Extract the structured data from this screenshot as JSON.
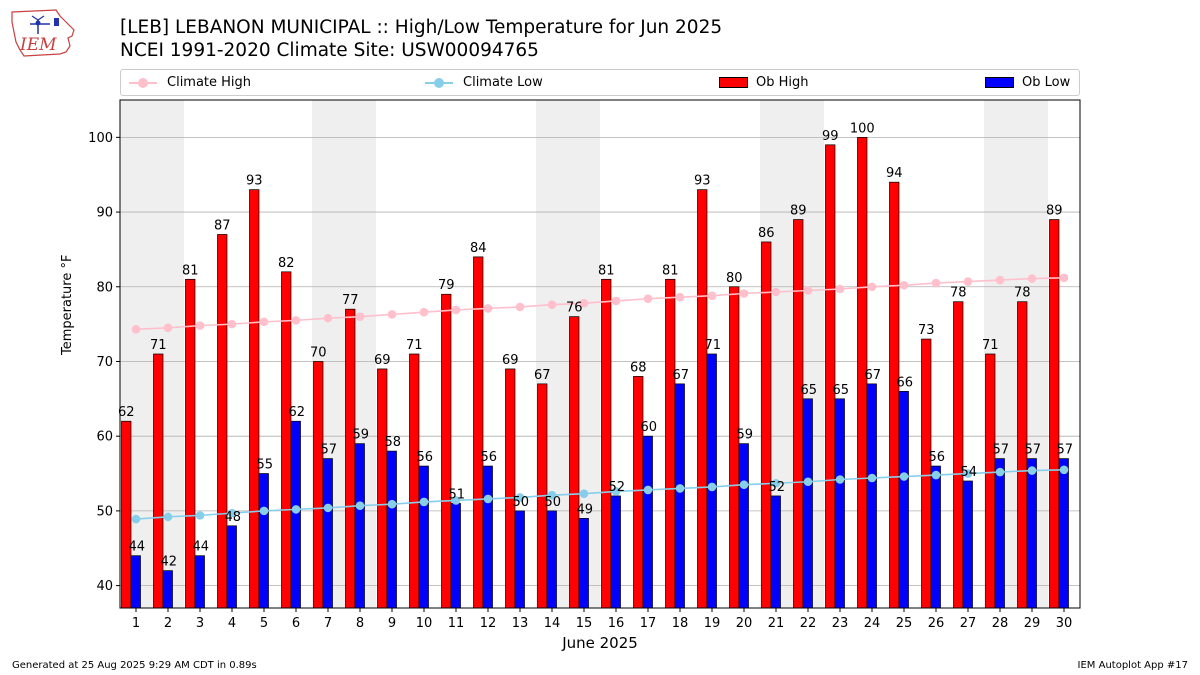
{
  "logo": {
    "text": "IEM"
  },
  "header": {
    "title": "[LEB] LEBANON MUNICIPAL :: High/Low Temperature for Jun 2025",
    "subtitle": "NCEI 1991-2020 Climate Site: USW00094765"
  },
  "legend": {
    "climate_high": "Climate High",
    "climate_low": "Climate Low",
    "ob_high": "Ob High",
    "ob_low": "Ob Low"
  },
  "colors": {
    "ob_high": "#ff0000",
    "ob_low": "#0000ff",
    "climate_high": "#ffc0cb",
    "climate_low": "#87ceeb",
    "weekend_shade": "#efefef",
    "grid": "#b0b0b0"
  },
  "footer": {
    "generated": "Generated at 25 Aug 2025 9:29 AM CDT in 0.89s",
    "app": "IEM Autoplot App #17"
  },
  "chart_data": {
    "type": "bar",
    "title": "[LEB] LEBANON MUNICIPAL :: High/Low Temperature for Jun 2025",
    "subtitle": "NCEI 1991-2020 Climate Site: USW00094765",
    "xlabel": "June 2025",
    "ylabel": "Temperature °F",
    "ylim": [
      37,
      105
    ],
    "yticks": [
      40,
      50,
      60,
      70,
      80,
      90,
      100
    ],
    "grid": true,
    "legend_position": "top",
    "categories": [
      1,
      2,
      3,
      4,
      5,
      6,
      7,
      8,
      9,
      10,
      11,
      12,
      13,
      14,
      15,
      16,
      17,
      18,
      19,
      20,
      21,
      22,
      23,
      24,
      25,
      26,
      27,
      28,
      29,
      30
    ],
    "shaded_days": [
      1,
      2,
      7,
      8,
      14,
      15,
      21,
      22,
      28,
      29
    ],
    "series": [
      {
        "name": "Ob High",
        "type": "bar",
        "values": [
          62,
          71,
          81,
          87,
          93,
          82,
          70,
          77,
          69,
          71,
          79,
          84,
          69,
          67,
          76,
          81,
          68,
          81,
          93,
          80,
          86,
          89,
          99,
          100,
          94,
          73,
          78,
          71,
          78,
          89
        ]
      },
      {
        "name": "Ob Low",
        "type": "bar",
        "values": [
          44,
          42,
          44,
          48,
          55,
          62,
          57,
          59,
          58,
          56,
          51,
          56,
          50,
          50,
          49,
          52,
          60,
          67,
          71,
          59,
          52,
          65,
          65,
          67,
          66,
          56,
          54,
          57,
          57,
          57
        ]
      },
      {
        "name": "Climate High",
        "type": "line",
        "values": [
          74.3,
          74.5,
          74.8,
          75.0,
          75.3,
          75.5,
          75.8,
          76.0,
          76.3,
          76.6,
          76.9,
          77.1,
          77.3,
          77.6,
          77.8,
          78.1,
          78.4,
          78.6,
          78.8,
          79.1,
          79.3,
          79.5,
          79.7,
          80.0,
          80.2,
          80.5,
          80.7,
          80.9,
          81.1,
          81.2
        ]
      },
      {
        "name": "Climate Low",
        "type": "line",
        "values": [
          48.9,
          49.2,
          49.4,
          49.7,
          50.0,
          50.2,
          50.4,
          50.7,
          50.9,
          51.2,
          51.4,
          51.6,
          51.8,
          52.1,
          52.3,
          52.6,
          52.8,
          53.0,
          53.2,
          53.5,
          53.7,
          53.9,
          54.2,
          54.4,
          54.6,
          54.8,
          55.0,
          55.2,
          55.4,
          55.5
        ]
      }
    ]
  }
}
